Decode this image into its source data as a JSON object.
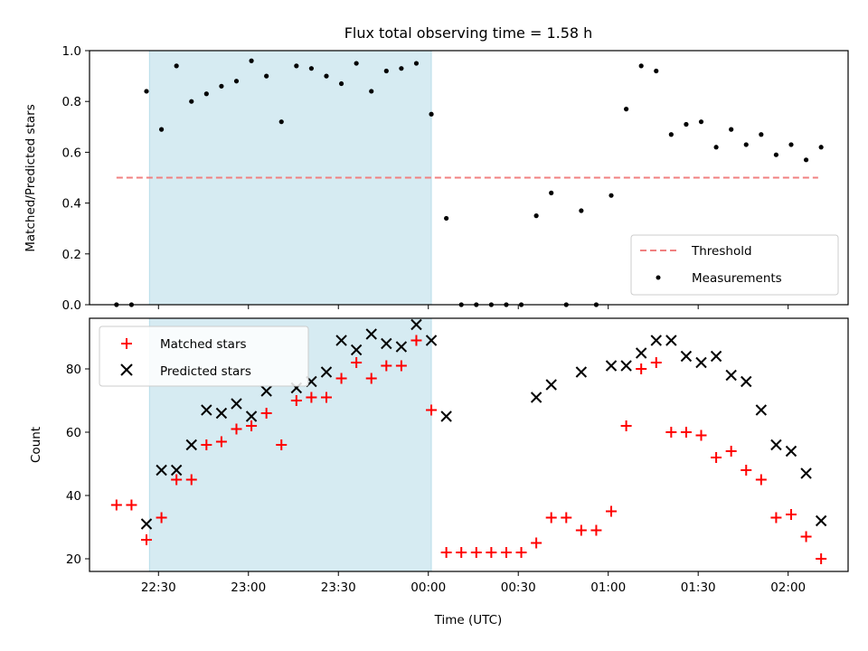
{
  "chart_data": [
    {
      "type": "scatter",
      "title": "Flux total observing time = 1.58 h",
      "xlabel": "",
      "ylabel": "Matched/Predicted stars",
      "ylim": [
        0,
        1
      ],
      "yticks": [
        "0.0",
        "0.2",
        "0.4",
        "0.6",
        "0.8",
        "1.0"
      ],
      "xticks": [
        "22:30",
        "23:00",
        "23:30",
        "00:00",
        "00:30",
        "01:00",
        "01:30",
        "02:00"
      ],
      "tick_times": [
        "22:30",
        "23:00",
        "23:30",
        "00:00",
        "00:30",
        "01:00",
        "01:30",
        "02:00"
      ],
      "xlim": [
        "22:07",
        "02:20"
      ],
      "shaded_span": [
        "22:27",
        "00:01"
      ],
      "threshold": {
        "name": "Threshold",
        "value": 0.5,
        "x": [
          "22:16",
          "02:10"
        ],
        "color": "#f08080"
      },
      "legend": {
        "placement": "lower right",
        "entries": [
          "Threshold",
          "Measurements"
        ]
      },
      "series": [
        {
          "name": "Measurements",
          "color": "#000000",
          "x": [
            "22:16",
            "22:21",
            "22:26",
            "22:31",
            "22:36",
            "22:41",
            "22:46",
            "22:51",
            "22:56",
            "23:01",
            "23:06",
            "23:11",
            "23:16",
            "23:21",
            "23:26",
            "23:31",
            "23:36",
            "23:41",
            "23:46",
            "23:51",
            "23:56",
            "00:01",
            "00:06",
            "00:11",
            "00:16",
            "00:21",
            "00:26",
            "00:31",
            "00:36",
            "00:41",
            "00:46",
            "00:51",
            "00:56",
            "01:01",
            "01:06",
            "01:11",
            "01:16",
            "01:21",
            "01:26",
            "01:31",
            "01:36",
            "01:41",
            "01:46",
            "01:51",
            "01:56",
            "02:01",
            "02:06",
            "02:11"
          ],
          "values": [
            0,
            0,
            0.84,
            0.69,
            0.94,
            0.8,
            0.83,
            0.86,
            0.88,
            0.96,
            0.9,
            0.72,
            0.94,
            0.93,
            0.9,
            0.87,
            0.95,
            0.84,
            0.92,
            0.93,
            0.95,
            0.75,
            0.34,
            0,
            0,
            0,
            0,
            0,
            0.35,
            0.44,
            0,
            0.37,
            0,
            0.43,
            0.77,
            0.94,
            0.92,
            0.67,
            0.71,
            0.72,
            0.62,
            0.69,
            0.63,
            0.67,
            0.59,
            0.63,
            0.57,
            0.62
          ]
        }
      ]
    },
    {
      "type": "scatter",
      "title": "",
      "xlabel": "Time (UTC)",
      "ylabel": "Count",
      "ylim": [
        16,
        96
      ],
      "yticks": [
        "20",
        "40",
        "60",
        "80"
      ],
      "ytick_values": [
        20,
        40,
        60,
        80
      ],
      "xticks": [
        "22:30",
        "23:00",
        "23:30",
        "00:00",
        "00:30",
        "01:00",
        "01:30",
        "02:00"
      ],
      "tick_times": [
        "22:30",
        "23:00",
        "23:30",
        "00:00",
        "00:30",
        "01:00",
        "01:30",
        "02:00"
      ],
      "xlim": [
        "22:07",
        "02:20"
      ],
      "shaded_span": [
        "22:27",
        "00:01"
      ],
      "legend": {
        "placement": "upper left",
        "entries": [
          "Matched stars",
          "Predicted stars"
        ]
      },
      "x": [
        "22:16",
        "22:21",
        "22:26",
        "22:31",
        "22:36",
        "22:41",
        "22:46",
        "22:51",
        "22:56",
        "23:01",
        "23:06",
        "23:11",
        "23:16",
        "23:21",
        "23:26",
        "23:31",
        "23:36",
        "23:41",
        "23:46",
        "23:51",
        "23:56",
        "00:01",
        "00:06",
        "00:11",
        "00:16",
        "00:21",
        "00:26",
        "00:31",
        "00:36",
        "00:41",
        "00:46",
        "00:51",
        "00:56",
        "01:01",
        "01:06",
        "01:11",
        "01:16",
        "01:21",
        "01:26",
        "01:31",
        "01:36",
        "01:41",
        "01:46",
        "01:51",
        "01:56",
        "02:01",
        "02:06",
        "02:11"
      ],
      "series": [
        {
          "name": "Matched stars",
          "marker": "plus",
          "color": "#ff0000",
          "values": [
            37,
            37,
            26,
            33,
            45,
            45,
            56,
            57,
            61,
            62,
            66,
            56,
            70,
            71,
            71,
            77,
            82,
            77,
            81,
            81,
            89,
            67,
            22,
            22,
            22,
            22,
            22,
            22,
            25,
            33,
            33,
            29,
            29,
            35,
            62,
            80,
            82,
            60,
            60,
            59,
            52,
            54,
            48,
            45,
            33,
            34,
            27,
            20
          ]
        },
        {
          "name": "Predicted stars",
          "marker": "x",
          "color": "#000000",
          "values": [
            null,
            null,
            31,
            48,
            48,
            56,
            67,
            66,
            69,
            65,
            73,
            null,
            74,
            76,
            79,
            89,
            86,
            91,
            88,
            87,
            94,
            89,
            65,
            null,
            null,
            null,
            null,
            null,
            71,
            75,
            null,
            79,
            null,
            81,
            81,
            85,
            89,
            89,
            84,
            82,
            84,
            78,
            76,
            67,
            56,
            54,
            47,
            32
          ]
        }
      ]
    }
  ]
}
